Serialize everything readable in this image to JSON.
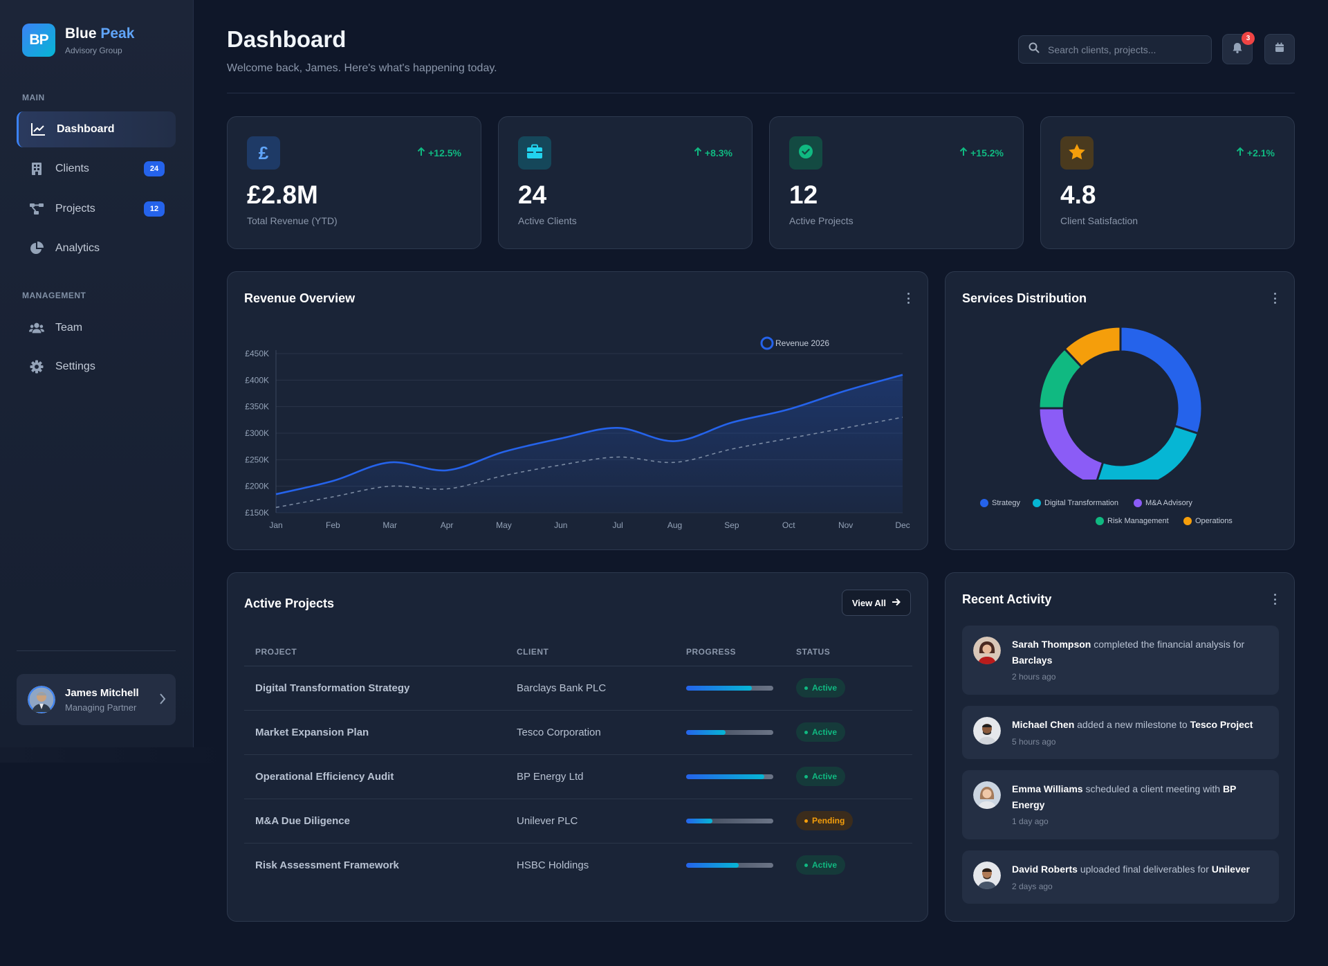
{
  "brand": {
    "initials": "BP",
    "name_first": "Blue",
    "name_second": "Peak",
    "subtitle": "Advisory Group"
  },
  "sidebar": {
    "sections": [
      {
        "label": "MAIN"
      },
      {
        "label": "MANAGEMENT"
      }
    ],
    "items": [
      {
        "label": "Dashboard",
        "icon": "chart-line-icon",
        "active": true
      },
      {
        "label": "Clients",
        "icon": "building-icon",
        "badge": "24"
      },
      {
        "label": "Projects",
        "icon": "project-diagram-icon",
        "badge": "12"
      },
      {
        "label": "Analytics",
        "icon": "pie-chart-icon"
      },
      {
        "label": "Team",
        "icon": "users-icon"
      },
      {
        "label": "Settings",
        "icon": "gear-icon"
      }
    ],
    "user": {
      "name": "James Mitchell",
      "role": "Managing Partner"
    }
  },
  "header": {
    "title": "Dashboard",
    "subtitle": "Welcome back, James. Here's what's happening today.",
    "search_placeholder": "Search clients, projects...",
    "notification_count": "3"
  },
  "colors": {
    "accent": "#3b82f6",
    "positive": "#10b981",
    "warning": "#f59e0b",
    "danger": "#ef4444"
  },
  "stats": [
    {
      "value": "£2.8M",
      "label": "Total Revenue (YTD)",
      "trend": "+12.5%",
      "icon": "pound-icon",
      "icon_color": "#60a5fa",
      "icon_bg": "#1e3a66"
    },
    {
      "value": "24",
      "label": "Active Clients",
      "trend": "+8.3%",
      "icon": "briefcase-icon",
      "icon_color": "#22d3ee",
      "icon_bg": "#15475a"
    },
    {
      "value": "12",
      "label": "Active Projects",
      "trend": "+15.2%",
      "icon": "check-circle-icon",
      "icon_color": "#10b981",
      "icon_bg": "#134a42"
    },
    {
      "value": "4.8",
      "label": "Client Satisfaction",
      "trend": "+2.1%",
      "icon": "star-icon",
      "icon_color": "#f59e0b",
      "icon_bg": "#4a3a1e"
    }
  ],
  "revenue_chart": {
    "title": "Revenue Overview"
  },
  "services_chart": {
    "title": "Services Distribution"
  },
  "chart_data": [
    {
      "type": "line",
      "title": "Revenue Overview",
      "x": [
        "Jan",
        "Feb",
        "Mar",
        "Apr",
        "May",
        "Jun",
        "Jul",
        "Aug",
        "Sep",
        "Oct",
        "Nov",
        "Dec"
      ],
      "series": [
        {
          "name": "Revenue 2026",
          "values": [
            185000,
            210000,
            245000,
            230000,
            265000,
            290000,
            310000,
            285000,
            320000,
            345000,
            380000,
            410000
          ],
          "color": "#2563eb"
        },
        {
          "name": "",
          "values": [
            160000,
            180000,
            200000,
            195000,
            220000,
            240000,
            255000,
            245000,
            270000,
            290000,
            310000,
            330000
          ],
          "color": "#94a3b8",
          "style": "dashed"
        }
      ],
      "yticks": [
        "£150K",
        "£200K",
        "£250K",
        "£300K",
        "£350K",
        "£400K",
        "£450K"
      ],
      "ylim": [
        150000,
        450000
      ],
      "grid": true,
      "legend": "top-right"
    },
    {
      "type": "pie",
      "title": "Services Distribution",
      "categories": [
        "Strategy",
        "Digital Transformation",
        "M&A Advisory",
        "Risk Management",
        "Operations"
      ],
      "values": [
        30,
        25,
        20,
        13,
        12
      ],
      "colors": [
        "#2563eb",
        "#06b6d4",
        "#8b5cf6",
        "#10b981",
        "#f59e0b"
      ],
      "legend": "bottom"
    }
  ],
  "projects": {
    "title": "Active Projects",
    "view_all": "View All",
    "columns": [
      "PROJECT",
      "CLIENT",
      "PROGRESS",
      "STATUS"
    ],
    "rows": [
      {
        "name": "Digital Transformation Strategy",
        "client": "Barclays Bank PLC",
        "progress": 0.75,
        "status": "Active"
      },
      {
        "name": "Market Expansion Plan",
        "client": "Tesco Corporation",
        "progress": 0.45,
        "status": "Active"
      },
      {
        "name": "Operational Efficiency Audit",
        "client": "BP Energy Ltd",
        "progress": 0.9,
        "status": "Active"
      },
      {
        "name": "M&A Due Diligence",
        "client": "Unilever PLC",
        "progress": 0.3,
        "status": "Pending"
      },
      {
        "name": "Risk Assessment Framework",
        "client": "HSBC Holdings",
        "progress": 0.6,
        "status": "Active"
      }
    ]
  },
  "activity": {
    "title": "Recent Activity",
    "items": [
      {
        "name": "Sarah Thompson",
        "text": "completed the financial analysis for",
        "target": "Barclays",
        "time": "2 hours ago"
      },
      {
        "name": "Michael Chen",
        "text": "added a new milestone to",
        "target": "Tesco Project",
        "time": "5 hours ago"
      },
      {
        "name": "Emma Williams",
        "text": "scheduled a client meeting with",
        "target": "BP Energy",
        "time": "1 day ago"
      },
      {
        "name": "David Roberts",
        "text": "uploaded final deliverables for",
        "target": "Unilever",
        "time": "2 days ago"
      }
    ]
  }
}
